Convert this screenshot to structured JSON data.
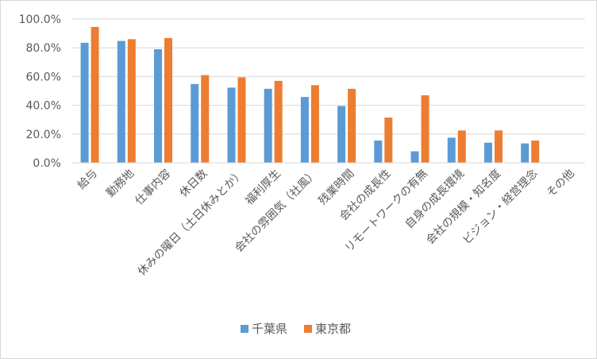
{
  "chart_data": {
    "type": "bar",
    "categories": [
      "給与",
      "勤務地",
      "仕事内容",
      "休日数",
      "休みの曜日（土日休みとか）",
      "福利厚生",
      "会社の雰囲気（社風）",
      "残業時間",
      "会社の成長性",
      "リモートワークの有無",
      "自身の成長環境",
      "会社の規模・知名度",
      "ビジョン・経営理念",
      "その他"
    ],
    "series": [
      {
        "name": "千葉県",
        "values": [
          83.5,
          84.8,
          79.0,
          54.8,
          52.3,
          51.5,
          45.8,
          39.5,
          15.5,
          8.0,
          17.5,
          14.0,
          13.5,
          0.0
        ],
        "color": "#5b9bd5"
      },
      {
        "name": "東京都",
        "values": [
          94.5,
          86.0,
          86.8,
          61.0,
          59.5,
          57.0,
          54.0,
          51.5,
          31.5,
          47.0,
          22.5,
          22.5,
          15.5,
          0.0
        ],
        "color": "#ed7d31"
      }
    ],
    "ylim": [
      0,
      100
    ],
    "yticks": [
      "0.0%",
      "20.0%",
      "40.0%",
      "60.0%",
      "80.0%",
      "100.0%"
    ],
    "grid": true,
    "legend_position": "bottom"
  }
}
